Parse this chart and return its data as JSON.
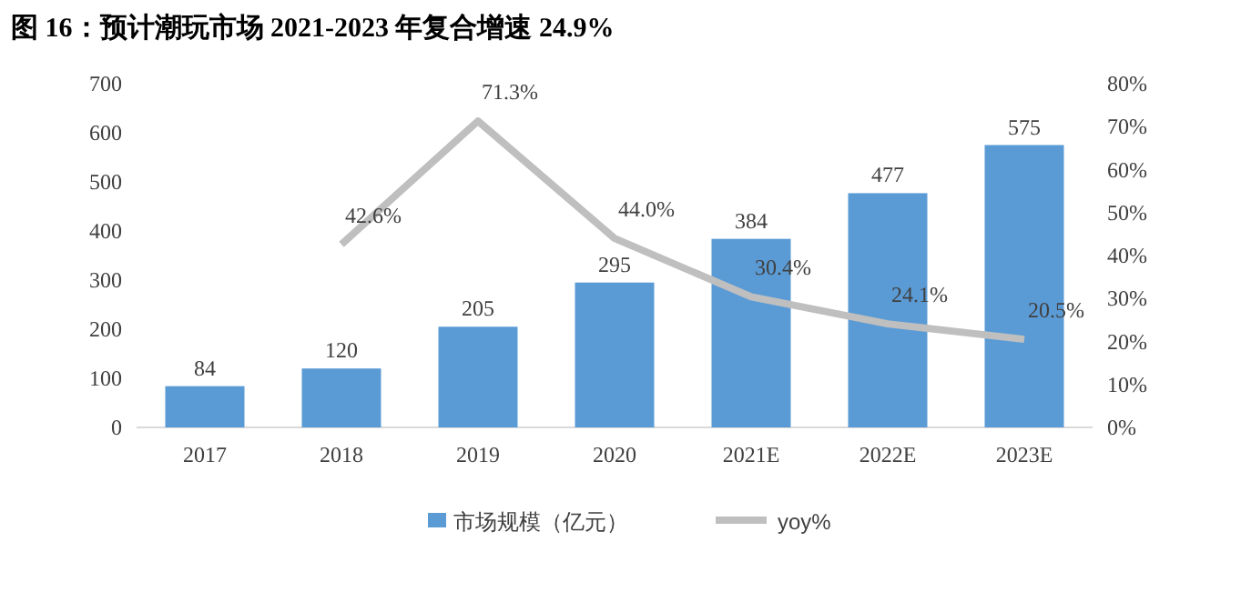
{
  "chart_data": {
    "type": "bar",
    "title": "图 16：预计潮玩市场 2021-2023 年复合增速 24.9%",
    "categories": [
      "2017",
      "2018",
      "2019",
      "2020",
      "2021E",
      "2022E",
      "2023E"
    ],
    "series": [
      {
        "name": "市场规模（亿元）",
        "color": "#5b9bd5",
        "values": [
          84,
          120,
          205,
          295,
          384,
          477,
          575
        ]
      },
      {
        "name": "yoy%",
        "type": "line",
        "axis": "y2",
        "color": "#bfbfbf",
        "values": [
          null,
          42.6,
          71.3,
          44.0,
          30.4,
          24.1,
          20.5
        ],
        "value_labels": [
          null,
          "42.6%",
          "71.3%",
          "44.0%",
          "30.4%",
          "24.1%",
          "20.5%"
        ]
      }
    ],
    "data_labels": true,
    "ylim": [
      0,
      700
    ],
    "yticks": [
      0,
      100,
      200,
      300,
      400,
      500,
      600,
      700
    ],
    "y2lim": [
      0,
      80
    ],
    "y2ticks": [
      {
        "value": 0,
        "label": "0%"
      },
      {
        "value": 10,
        "label": "10%"
      },
      {
        "value": 20,
        "label": "20%"
      },
      {
        "value": 30,
        "label": "30%"
      },
      {
        "value": 40,
        "label": "40%"
      },
      {
        "value": 50,
        "label": "50%"
      },
      {
        "value": 60,
        "label": "60%"
      },
      {
        "value": 70,
        "label": "70%"
      },
      {
        "value": 80,
        "label": "80%"
      }
    ],
    "grid": false,
    "legend": "bottom",
    "marker": "none",
    "line_style": "solid"
  }
}
